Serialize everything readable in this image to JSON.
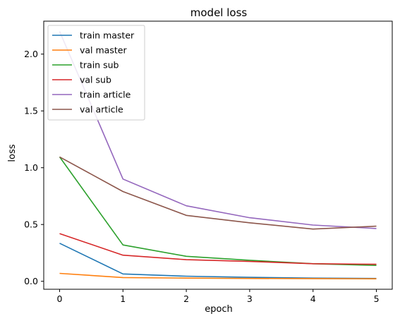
{
  "chart_data": {
    "type": "line",
    "title": "model loss",
    "xlabel": "epoch",
    "ylabel": "loss",
    "x": [
      0,
      1,
      2,
      3,
      4,
      5
    ],
    "xticks": [
      "0",
      "1",
      "2",
      "3",
      "4",
      "5"
    ],
    "yticks": [
      "0.0",
      "0.5",
      "1.0",
      "1.5",
      "2.0"
    ],
    "xlim": [
      -0.25,
      5.25
    ],
    "ylim": [
      -0.07,
      2.29
    ],
    "grid": false,
    "legend_position": "upper-left",
    "series": [
      {
        "name": "train master",
        "color": "#1f77b4",
        "values": [
          0.335,
          0.065,
          0.045,
          0.035,
          0.028,
          0.025
        ]
      },
      {
        "name": "val master",
        "color": "#ff7f0e",
        "values": [
          0.07,
          0.033,
          0.028,
          0.025,
          0.024,
          0.022
        ]
      },
      {
        "name": "train sub",
        "color": "#2ca02c",
        "values": [
          1.095,
          0.32,
          0.22,
          0.185,
          0.155,
          0.14
        ]
      },
      {
        "name": "val sub",
        "color": "#d62728",
        "values": [
          0.42,
          0.23,
          0.19,
          0.175,
          0.155,
          0.15
        ]
      },
      {
        "name": "train article",
        "color": "#9467bd",
        "values": [
          2.2,
          0.9,
          0.665,
          0.56,
          0.495,
          0.465
        ]
      },
      {
        "name": "val article",
        "color": "#8c564b",
        "values": [
          1.095,
          0.79,
          0.58,
          0.515,
          0.46,
          0.485
        ]
      }
    ]
  }
}
